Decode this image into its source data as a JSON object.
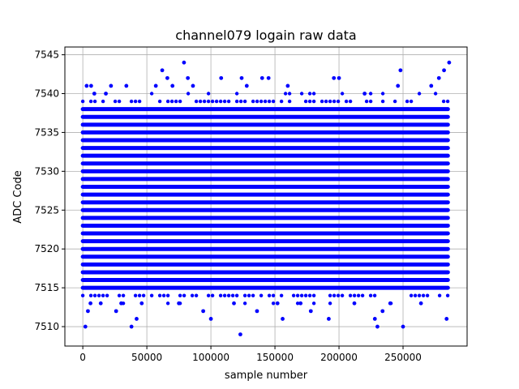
{
  "chart_data": {
    "type": "scatter",
    "title": "channel079 logain raw data",
    "xlabel": "sample number",
    "ylabel": "ADC Code",
    "xlim": [
      -14000,
      300000
    ],
    "ylim": [
      7507.5,
      7546
    ],
    "xticks": [
      0,
      50000,
      100000,
      150000,
      200000,
      250000
    ],
    "yticks": [
      7510,
      7515,
      7520,
      7525,
      7530,
      7535,
      7540,
      7545
    ],
    "grid": true,
    "marker_color": "#0000ff",
    "x_range": [
      0,
      285000
    ],
    "dense_band": [
      7515,
      7538
    ],
    "outliers": [
      {
        "x": 2000,
        "y": 7510
      },
      {
        "x": 4000,
        "y": 7512
      },
      {
        "x": 6000,
        "y": 7513
      },
      {
        "x": 3000,
        "y": 7541
      },
      {
        "x": 6500,
        "y": 7541
      },
      {
        "x": 9000,
        "y": 7540
      },
      {
        "x": 14000,
        "y": 7513
      },
      {
        "x": 18000,
        "y": 7540
      },
      {
        "x": 22000,
        "y": 7541
      },
      {
        "x": 26000,
        "y": 7512
      },
      {
        "x": 30000,
        "y": 7513
      },
      {
        "x": 34000,
        "y": 7541
      },
      {
        "x": 38000,
        "y": 7510
      },
      {
        "x": 42000,
        "y": 7511
      },
      {
        "x": 46000,
        "y": 7513
      },
      {
        "x": 57000,
        "y": 7541
      },
      {
        "x": 62000,
        "y": 7543
      },
      {
        "x": 66000,
        "y": 7542
      },
      {
        "x": 70000,
        "y": 7541
      },
      {
        "x": 75000,
        "y": 7513
      },
      {
        "x": 79000,
        "y": 7544
      },
      {
        "x": 82000,
        "y": 7542
      },
      {
        "x": 86000,
        "y": 7541
      },
      {
        "x": 94000,
        "y": 7512
      },
      {
        "x": 100000,
        "y": 7511
      },
      {
        "x": 108000,
        "y": 7542
      },
      {
        "x": 118000,
        "y": 7513
      },
      {
        "x": 123000,
        "y": 7509
      },
      {
        "x": 124000,
        "y": 7542
      },
      {
        "x": 128000,
        "y": 7541
      },
      {
        "x": 136000,
        "y": 7512
      },
      {
        "x": 140000,
        "y": 7542
      },
      {
        "x": 145000,
        "y": 7542
      },
      {
        "x": 152000,
        "y": 7513
      },
      {
        "x": 156000,
        "y": 7511
      },
      {
        "x": 160000,
        "y": 7541
      },
      {
        "x": 170000,
        "y": 7513
      },
      {
        "x": 178000,
        "y": 7512
      },
      {
        "x": 192000,
        "y": 7511
      },
      {
        "x": 196000,
        "y": 7542
      },
      {
        "x": 200000,
        "y": 7542
      },
      {
        "x": 212000,
        "y": 7513
      },
      {
        "x": 220000,
        "y": 7540
      },
      {
        "x": 228000,
        "y": 7511
      },
      {
        "x": 230000,
        "y": 7510
      },
      {
        "x": 234000,
        "y": 7512
      },
      {
        "x": 240000,
        "y": 7513
      },
      {
        "x": 246000,
        "y": 7541
      },
      {
        "x": 248000,
        "y": 7543
      },
      {
        "x": 250000,
        "y": 7510
      },
      {
        "x": 264000,
        "y": 7513
      },
      {
        "x": 272000,
        "y": 7541
      },
      {
        "x": 278000,
        "y": 7542
      },
      {
        "x": 282000,
        "y": 7543
      },
      {
        "x": 284000,
        "y": 7511
      },
      {
        "x": 286000,
        "y": 7544
      }
    ]
  }
}
